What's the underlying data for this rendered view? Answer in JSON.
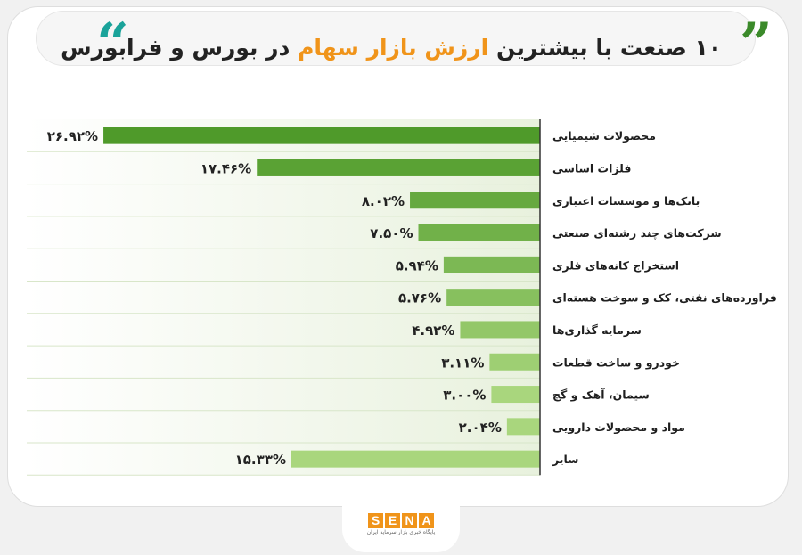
{
  "header": {
    "title_part1": "۱۰ صنعت با بیشترین",
    "title_highlight": "ارزش بازار سهام",
    "title_part2": "در بورس و فرابورس"
  },
  "colors": {
    "bar_dark": "#4f9a2a",
    "bar_light": "#a9d67d",
    "accent": "#f0941a",
    "quote_teal": "#1aa39a"
  },
  "chart_data": {
    "type": "bar",
    "orientation": "horizontal",
    "categories": [
      "محصولات شیمیایی",
      "فلزات اساسی",
      "بانک‌ها و موسسات اعتباری",
      "شرکت‌های چند رشته‌ای صنعتی",
      "استخراج کانه‌های فلزی",
      "فراورده‌های نفتی، کک و سوخت هسته‌ای",
      "سرمایه گذاری‌ها",
      "خودرو و ساخت قطعات",
      "سیمان، آهک و گچ",
      "مواد و محصولات دارویی",
      "سایر"
    ],
    "values": [
      26.92,
      17.46,
      8.02,
      7.5,
      5.94,
      5.76,
      4.92,
      3.11,
      3.0,
      2.04,
      15.33
    ],
    "labels": [
      "۲۶.۹۲%",
      "۱۷.۴۶%",
      "۸.۰۲%",
      "۷.۵۰%",
      "۵.۹۴%",
      "۵.۷۶%",
      "۴.۹۲%",
      "۳.۱۱%",
      "۳.۰۰%",
      "۲.۰۴%",
      "۱۵.۳۳%"
    ],
    "title": "",
    "xlabel": "",
    "ylabel": "",
    "grid": false
  },
  "footer": {
    "logo_letters": [
      "S",
      "E",
      "N",
      "A"
    ],
    "logo_subtitle": "پایگاه خبری بازار سرمایه ایران"
  }
}
